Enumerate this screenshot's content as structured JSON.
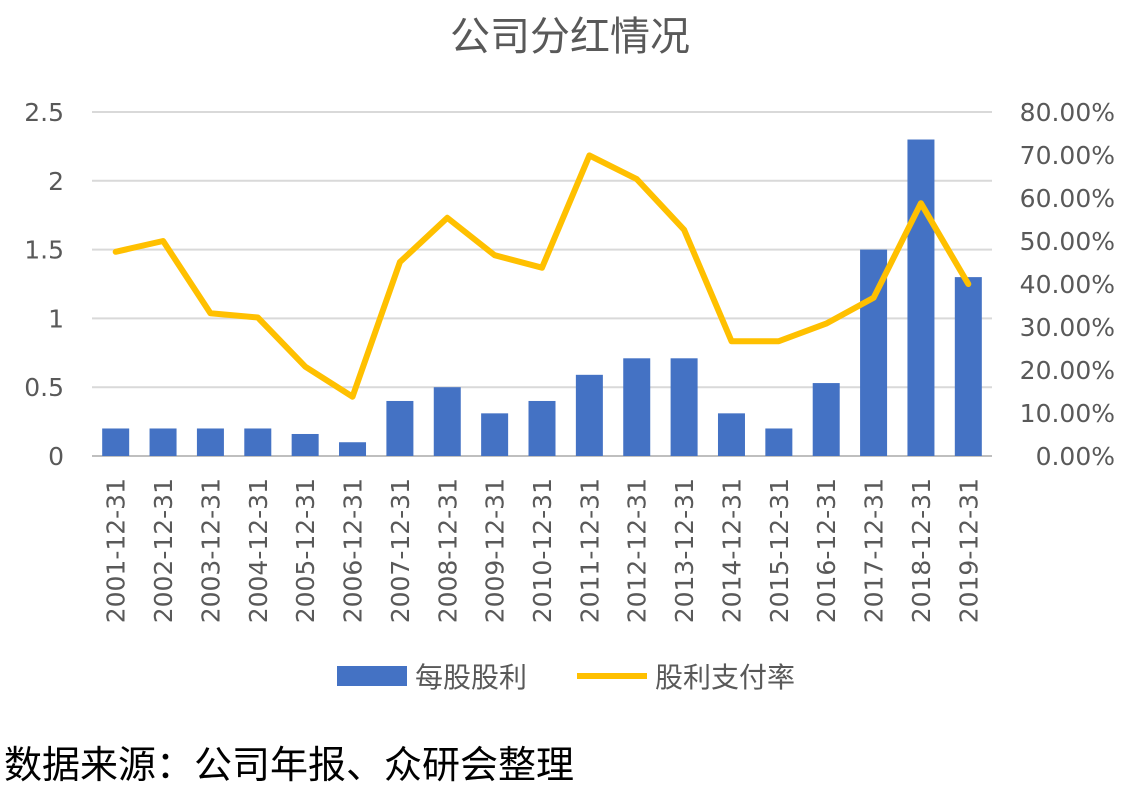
{
  "chart_data": {
    "type": "bar",
    "title": "公司分红情况",
    "categories": [
      "2001-12-31",
      "2002-12-31",
      "2003-12-31",
      "2004-12-31",
      "2005-12-31",
      "2006-12-31",
      "2007-12-31",
      "2008-12-31",
      "2009-12-31",
      "2010-12-31",
      "2011-12-31",
      "2012-12-31",
      "2013-12-31",
      "2014-12-31",
      "2015-12-31",
      "2016-12-31",
      "2017-12-31",
      "2018-12-31",
      "2019-12-31"
    ],
    "series": [
      {
        "name": "每股股利",
        "type": "bar",
        "axis": "left",
        "color": "#4472C4",
        "values": [
          0.2,
          0.2,
          0.2,
          0.2,
          0.16,
          0.1,
          0.4,
          0.5,
          0.31,
          0.4,
          0.59,
          0.71,
          0.71,
          0.31,
          0.2,
          0.53,
          1.5,
          2.3,
          1.3
        ]
      },
      {
        "name": "股利支付率",
        "type": "line",
        "axis": "right",
        "color": "#FFC000",
        "values": [
          47.5,
          50.0,
          33.2,
          32.2,
          20.8,
          13.8,
          45.1,
          55.4,
          46.7,
          43.8,
          69.9,
          64.4,
          52.6,
          26.7,
          26.7,
          30.8,
          36.8,
          58.8,
          40.0
        ]
      }
    ],
    "y_left": {
      "ylim": [
        0,
        2.5
      ],
      "ticks": [
        "0",
        "0.5",
        "1",
        "1.5",
        "2",
        "2.5"
      ]
    },
    "y_right": {
      "ylim": [
        0,
        80
      ],
      "ticks": [
        "0.00%",
        "10.00%",
        "20.00%",
        "30.00%",
        "40.00%",
        "50.00%",
        "60.00%",
        "70.00%",
        "80.00%"
      ]
    },
    "grid": true,
    "legend_position": "bottom"
  },
  "source_note": "数据来源：公司年报、众研会整理"
}
